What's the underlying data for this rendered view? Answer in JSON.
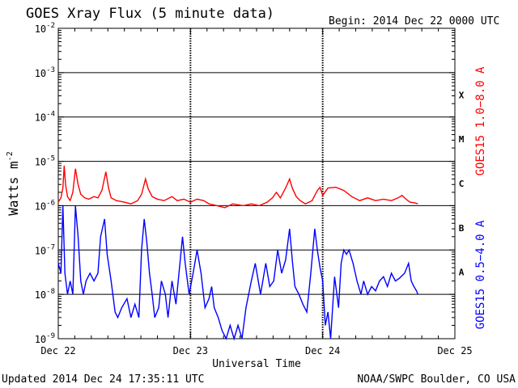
{
  "chart_data": {
    "type": "line",
    "title": "GOES Xray Flux (5 minute data)",
    "begin_label": "Begin:  2014 Dec 22 0000 UTC",
    "ylabel": "Watts m",
    "ylabel_superscript": "-2",
    "xlabel": "Universal Time",
    "y_scale": "log",
    "ylim": [
      1e-09,
      0.01
    ],
    "y_ticks": [
      {
        "mantissa": "10",
        "exp": "-2"
      },
      {
        "mantissa": "10",
        "exp": "-3"
      },
      {
        "mantissa": "10",
        "exp": "-4"
      },
      {
        "mantissa": "10",
        "exp": "-5"
      },
      {
        "mantissa": "10",
        "exp": "-6"
      },
      {
        "mantissa": "10",
        "exp": "-7"
      },
      {
        "mantissa": "10",
        "exp": "-8"
      },
      {
        "mantissa": "10",
        "exp": "-9"
      }
    ],
    "x_ticks": [
      "Dec 22",
      "Dec 23",
      "Dec 24",
      "Dec 25"
    ],
    "xlim_days": [
      0,
      3
    ],
    "class_labels": [
      "X",
      "M",
      "C",
      "B",
      "A"
    ],
    "grid": true,
    "colors": {
      "long": "#ff0000",
      "short": "#0000ff",
      "grid": "#000000"
    },
    "series": [
      {
        "name": "GOES15 1.0−8.0 A",
        "color": "#ff0000",
        "points": [
          [
            0.0,
            1.2e-06
          ],
          [
            0.02,
            1.5e-06
          ],
          [
            0.035,
            2.5e-06
          ],
          [
            0.045,
            8e-06
          ],
          [
            0.055,
            3e-06
          ],
          [
            0.07,
            1.6e-06
          ],
          [
            0.09,
            1.3e-06
          ],
          [
            0.11,
            2e-06
          ],
          [
            0.13,
            6.8e-06
          ],
          [
            0.15,
            3e-06
          ],
          [
            0.17,
            1.8e-06
          ],
          [
            0.2,
            1.5e-06
          ],
          [
            0.23,
            1.4e-06
          ],
          [
            0.27,
            1.6e-06
          ],
          [
            0.3,
            1.5e-06
          ],
          [
            0.33,
            2.2e-06
          ],
          [
            0.36,
            5.8e-06
          ],
          [
            0.38,
            2.5e-06
          ],
          [
            0.4,
            1.5e-06
          ],
          [
            0.44,
            1.3e-06
          ],
          [
            0.5,
            1.2e-06
          ],
          [
            0.55,
            1.1e-06
          ],
          [
            0.6,
            1.3e-06
          ],
          [
            0.63,
            1.8e-06
          ],
          [
            0.66,
            4e-06
          ],
          [
            0.68,
            2.4e-06
          ],
          [
            0.71,
            1.6e-06
          ],
          [
            0.75,
            1.4e-06
          ],
          [
            0.8,
            1.3e-06
          ],
          [
            0.86,
            1.6e-06
          ],
          [
            0.9,
            1.3e-06
          ],
          [
            0.95,
            1.4e-06
          ],
          [
            1.0,
            1.2e-06
          ],
          [
            1.05,
            1.4e-06
          ],
          [
            1.1,
            1.3e-06
          ],
          [
            1.14,
            1.1e-06
          ],
          [
            1.2,
            1e-06
          ],
          [
            1.26,
            9e-07
          ],
          [
            1.32,
            1.1e-06
          ],
          [
            1.4,
            1e-06
          ],
          [
            1.46,
            1.1e-06
          ],
          [
            1.52,
            1e-06
          ],
          [
            1.58,
            1.2e-06
          ],
          [
            1.62,
            1.5e-06
          ],
          [
            1.65,
            2e-06
          ],
          [
            1.68,
            1.5e-06
          ],
          [
            1.72,
            2.5e-06
          ],
          [
            1.75,
            4e-06
          ],
          [
            1.77,
            2.5e-06
          ],
          [
            1.8,
            1.6e-06
          ],
          [
            1.83,
            1.3e-06
          ],
          [
            1.87,
            1.1e-06
          ],
          [
            1.92,
            1.3e-06
          ],
          [
            1.96,
            2.2e-06
          ],
          [
            1.98,
            2.6e-06
          ],
          [
            2.0,
            1.7e-06
          ],
          [
            2.04,
            2.5e-06
          ],
          [
            2.1,
            2.6e-06
          ],
          [
            2.16,
            2.2e-06
          ],
          [
            2.22,
            1.6e-06
          ],
          [
            2.28,
            1.3e-06
          ],
          [
            2.34,
            1.5e-06
          ],
          [
            2.4,
            1.3e-06
          ],
          [
            2.46,
            1.4e-06
          ],
          [
            2.52,
            1.3e-06
          ],
          [
            2.57,
            1.5e-06
          ],
          [
            2.6,
            1.7e-06
          ],
          [
            2.63,
            1.4e-06
          ],
          [
            2.66,
            1.2e-06
          ],
          [
            2.7,
            1.15e-06
          ],
          [
            2.72,
            1.1e-06
          ]
        ]
      },
      {
        "name": "GOES15 0.5−4.0 A",
        "color": "#0000ff",
        "points": [
          [
            0.0,
            5e-08
          ],
          [
            0.02,
            3e-08
          ],
          [
            0.035,
            1e-06
          ],
          [
            0.05,
            3e-08
          ],
          [
            0.07,
            1e-08
          ],
          [
            0.09,
            2e-08
          ],
          [
            0.11,
            1e-08
          ],
          [
            0.13,
            1e-06
          ],
          [
            0.15,
            2e-07
          ],
          [
            0.17,
            2e-08
          ],
          [
            0.19,
            1e-08
          ],
          [
            0.21,
            2e-08
          ],
          [
            0.24,
            3e-08
          ],
          [
            0.27,
            2e-08
          ],
          [
            0.3,
            3e-08
          ],
          [
            0.32,
            2e-07
          ],
          [
            0.35,
            5e-07
          ],
          [
            0.37,
            8e-08
          ],
          [
            0.4,
            2e-08
          ],
          [
            0.43,
            4e-09
          ],
          [
            0.45,
            3e-09
          ],
          [
            0.48,
            5e-09
          ],
          [
            0.52,
            8e-09
          ],
          [
            0.55,
            3e-09
          ],
          [
            0.58,
            6e-09
          ],
          [
            0.61,
            3e-09
          ],
          [
            0.63,
            1e-07
          ],
          [
            0.65,
            5e-07
          ],
          [
            0.67,
            1.5e-07
          ],
          [
            0.69,
            3e-08
          ],
          [
            0.71,
            1e-08
          ],
          [
            0.73,
            3e-09
          ],
          [
            0.76,
            5e-09
          ],
          [
            0.78,
            2e-08
          ],
          [
            0.81,
            1e-08
          ],
          [
            0.83,
            3e-09
          ],
          [
            0.86,
            2e-08
          ],
          [
            0.89,
            6e-09
          ],
          [
            0.92,
            5e-08
          ],
          [
            0.94,
            2e-07
          ],
          [
            0.96,
            5e-08
          ],
          [
            0.99,
            1e-08
          ],
          [
            1.02,
            3e-08
          ],
          [
            1.05,
            1e-07
          ],
          [
            1.08,
            3e-08
          ],
          [
            1.11,
            5e-09
          ],
          [
            1.14,
            8e-09
          ],
          [
            1.16,
            1.5e-08
          ],
          [
            1.18,
            5e-09
          ],
          [
            1.21,
            3e-09
          ],
          [
            1.24,
            1.5e-09
          ],
          [
            1.27,
            1e-09
          ],
          [
            1.3,
            2e-09
          ],
          [
            1.33,
            1e-09
          ],
          [
            1.36,
            2e-09
          ],
          [
            1.39,
            1e-09
          ],
          [
            1.42,
            5e-09
          ],
          [
            1.46,
            2e-08
          ],
          [
            1.49,
            5e-08
          ],
          [
            1.53,
            1e-08
          ],
          [
            1.57,
            5e-08
          ],
          [
            1.6,
            1.5e-08
          ],
          [
            1.63,
            2e-08
          ],
          [
            1.66,
            1e-07
          ],
          [
            1.69,
            3e-08
          ],
          [
            1.72,
            6e-08
          ],
          [
            1.75,
            3e-07
          ],
          [
            1.77,
            6e-08
          ],
          [
            1.79,
            1.5e-08
          ],
          [
            1.82,
            1e-08
          ],
          [
            1.85,
            6e-09
          ],
          [
            1.88,
            4e-09
          ],
          [
            1.91,
            3e-08
          ],
          [
            1.94,
            3e-07
          ],
          [
            1.96,
            1e-07
          ],
          [
            1.98,
            4e-08
          ],
          [
            2.0,
            2e-08
          ],
          [
            2.02,
            2e-09
          ],
          [
            2.04,
            4e-09
          ],
          [
            2.06,
            1e-09
          ],
          [
            2.09,
            2.5e-08
          ],
          [
            2.12,
            5e-09
          ],
          [
            2.14,
            5e-08
          ],
          [
            2.16,
            1e-07
          ],
          [
            2.18,
            8e-08
          ],
          [
            2.2,
            1e-07
          ],
          [
            2.23,
            5e-08
          ],
          [
            2.26,
            2e-08
          ],
          [
            2.29,
            1e-08
          ],
          [
            2.31,
            2e-08
          ],
          [
            2.34,
            1e-08
          ],
          [
            2.37,
            1.5e-08
          ],
          [
            2.4,
            1.2e-08
          ],
          [
            2.43,
            2e-08
          ],
          [
            2.46,
            2.5e-08
          ],
          [
            2.49,
            1.5e-08
          ],
          [
            2.52,
            3e-08
          ],
          [
            2.55,
            2e-08
          ],
          [
            2.58,
            2.3e-08
          ],
          [
            2.62,
            3e-08
          ],
          [
            2.65,
            5e-08
          ],
          [
            2.67,
            2e-08
          ],
          [
            2.69,
            1.5e-08
          ],
          [
            2.71,
            1.2e-08
          ],
          [
            2.72,
            1e-08
          ]
        ]
      }
    ]
  },
  "footer": {
    "updated": "Updated 2014 Dec 24 17:35:11 UTC",
    "credit": "NOAA/SWPC Boulder, CO USA"
  }
}
